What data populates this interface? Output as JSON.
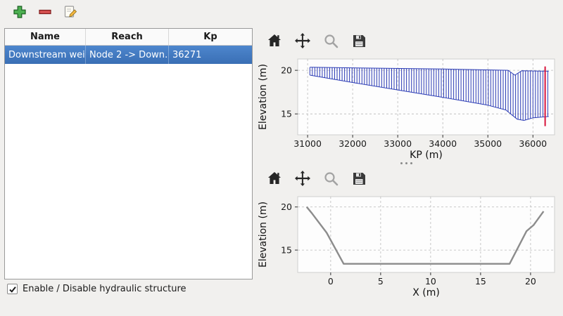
{
  "structures_table": {
    "columns": [
      "Name",
      "Reach",
      "Kp"
    ],
    "rows": [
      {
        "name": "Downstream weir",
        "reach": "Node 2 -> Down…",
        "kp": "36271",
        "selected": true
      }
    ],
    "selection_color": "#3f7dc3"
  },
  "footer": {
    "checkbox_label": "Enable / Disable hydraulic structure",
    "checked": true
  },
  "main_toolbar": {
    "icons": [
      "plus-icon",
      "minus-icon",
      "edit-icon"
    ]
  },
  "chart_toolbar": {
    "icons": [
      "home-icon",
      "pan-icon",
      "zoom-icon",
      "save-icon"
    ],
    "zoom_disabled": true
  },
  "chart_data": [
    {
      "type": "area",
      "name": "longitudinal-profile",
      "title": "",
      "xlabel": "KP (m)",
      "ylabel": "Elevation (m)",
      "xlim": [
        30780,
        36480
      ],
      "ylim": [
        12.6,
        21.3
      ],
      "xticks": [
        31000,
        32000,
        33000,
        34000,
        35000,
        36000
      ],
      "yticks": [
        15,
        20
      ],
      "grid": "dashed",
      "hatch_step": 55,
      "hatch_color": "#2c3cb5",
      "top_profile": [
        [
          31050,
          20.35
        ],
        [
          34000,
          20.15
        ],
        [
          35450,
          20.0
        ],
        [
          35600,
          19.45
        ],
        [
          35750,
          19.95
        ],
        [
          36350,
          19.9
        ]
      ],
      "bottom_profile": [
        [
          31050,
          19.45
        ],
        [
          32000,
          18.6
        ],
        [
          33000,
          17.75
        ],
        [
          34000,
          16.9
        ],
        [
          35000,
          16.0
        ],
        [
          35400,
          15.45
        ],
        [
          35650,
          14.4
        ],
        [
          35800,
          14.25
        ],
        [
          36000,
          14.55
        ],
        [
          36350,
          14.7
        ]
      ],
      "marker_line": {
        "x": 36271,
        "y_span": [
          13.6,
          20.45
        ],
        "color": "#d8133b"
      }
    },
    {
      "type": "line",
      "name": "cross-section",
      "title": "",
      "xlabel": "X (m)",
      "ylabel": "Elevation (m)",
      "xlim": [
        -3.3,
        22.4
      ],
      "ylim": [
        12.4,
        21.2
      ],
      "xticks": [
        0,
        5,
        10,
        15,
        20
      ],
      "yticks": [
        15,
        20
      ],
      "grid": "dashed",
      "series": [
        {
          "name": "bed-profile",
          "color": "#8c8c8c",
          "width": 2.4,
          "points": [
            [
              -2.4,
              20.0
            ],
            [
              -1.9,
              19.3
            ],
            [
              -0.4,
              17.0
            ],
            [
              1.3,
              13.4
            ],
            [
              17.9,
              13.4
            ],
            [
              19.6,
              17.2
            ],
            [
              20.3,
              17.9
            ],
            [
              21.3,
              19.5
            ]
          ]
        }
      ]
    }
  ]
}
